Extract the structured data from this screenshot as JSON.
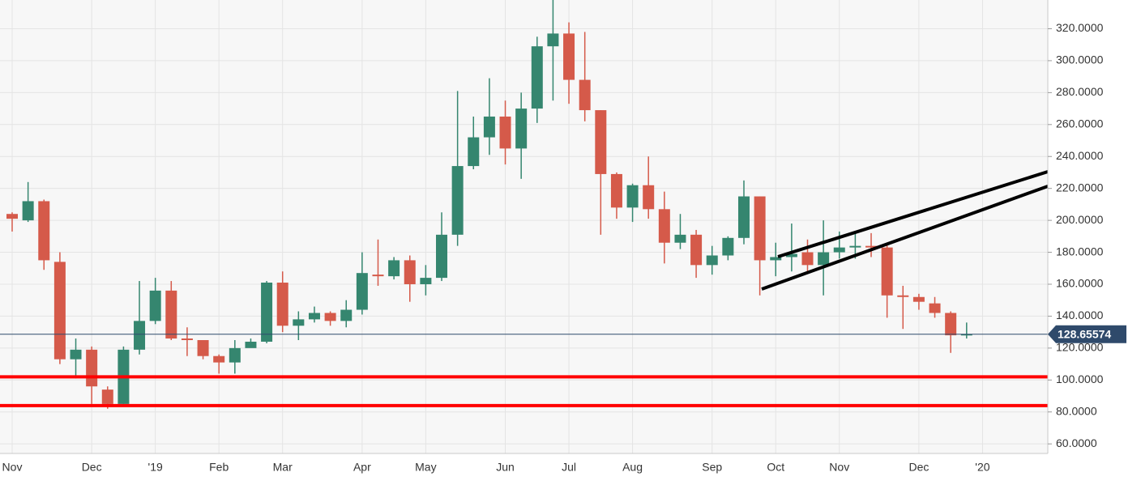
{
  "chart_data": {
    "type": "candlestick",
    "categories": [
      "Nov",
      null,
      null,
      null,
      null,
      "Dec",
      null,
      null,
      null,
      "'19",
      null,
      null,
      null,
      "Feb",
      null,
      null,
      null,
      "Mar",
      null,
      null,
      null,
      null,
      "Apr",
      null,
      null,
      null,
      "May",
      null,
      null,
      null,
      null,
      "Jun",
      null,
      null,
      null,
      "Jul",
      null,
      null,
      null,
      "Aug",
      null,
      null,
      null,
      null,
      "Sep",
      null,
      null,
      null,
      "Oct",
      null,
      null,
      null,
      "Nov",
      null,
      null,
      null,
      null,
      "Dec",
      null,
      null,
      null,
      "'20"
    ],
    "open": [
      204,
      200,
      212,
      174,
      113,
      119,
      94,
      85,
      119,
      137,
      156,
      126,
      125,
      115,
      111,
      120,
      124,
      161,
      134,
      138,
      142,
      137,
      144,
      166,
      165,
      175,
      160,
      164,
      191,
      234,
      252,
      265,
      245,
      270,
      309,
      317,
      288,
      269,
      229,
      208,
      222,
      207,
      186,
      191,
      172,
      178,
      189,
      215,
      175,
      177,
      180,
      172,
      180,
      183,
      184,
      183,
      153,
      152,
      148,
      142,
      128,
      null
    ],
    "high": [
      205,
      224,
      213,
      180,
      126,
      121,
      96,
      121,
      162,
      164,
      162,
      133,
      125,
      116,
      125,
      126,
      162,
      168,
      143,
      146,
      143,
      150,
      180,
      188,
      177,
      178,
      172,
      205,
      281,
      265,
      289,
      275,
      280,
      315,
      338,
      324,
      318,
      269,
      230,
      223,
      240,
      218,
      204,
      194,
      184,
      190,
      225,
      215,
      186,
      198,
      188,
      200,
      193,
      193,
      192,
      186,
      159,
      154,
      152,
      143,
      136,
      null
    ],
    "low": [
      193,
      199,
      169,
      110,
      101,
      85,
      82,
      85,
      116,
      135,
      125,
      115,
      113,
      104,
      104,
      121,
      123,
      130,
      125,
      136,
      134,
      133,
      141,
      159,
      163,
      149,
      153,
      162,
      184,
      232,
      241,
      235,
      226,
      261,
      275,
      273,
      262,
      191,
      201,
      199,
      201,
      173,
      182,
      164,
      166,
      175,
      185,
      153,
      165,
      168,
      167,
      153,
      176,
      176,
      177,
      139,
      132,
      144,
      139,
      117,
      126,
      null
    ],
    "close": [
      201,
      212,
      175,
      113,
      119,
      96,
      85,
      119,
      137,
      156,
      126,
      125,
      115,
      111,
      120,
      124,
      161,
      134,
      138,
      142,
      137,
      144,
      167,
      165,
      175,
      160,
      164,
      191,
      234,
      252,
      265,
      245,
      270,
      309,
      317,
      288,
      269,
      229,
      208,
      222,
      207,
      186,
      191,
      172,
      178,
      189,
      215,
      175,
      177,
      179,
      172,
      180,
      183,
      184,
      183,
      153,
      152,
      149,
      142,
      128,
      128.66,
      null
    ],
    "up_color": "#35866f",
    "down_color": "#d55a4a",
    "ylim": [
      54,
      338
    ],
    "yticks": [
      {
        "value": 60,
        "label": "60.0000"
      },
      {
        "value": 80,
        "label": "80.0000"
      },
      {
        "value": 100,
        "label": "100.0000"
      },
      {
        "value": 120,
        "label": "120.0000"
      },
      {
        "value": 140,
        "label": "140.0000"
      },
      {
        "value": 160,
        "label": "160.0000"
      },
      {
        "value": 180,
        "label": "180.0000"
      },
      {
        "value": 200,
        "label": "200.0000"
      },
      {
        "value": 220,
        "label": "220.0000"
      },
      {
        "value": 240,
        "label": "240.0000"
      },
      {
        "value": 260,
        "label": "260.0000"
      },
      {
        "value": 280,
        "label": "280.0000"
      },
      {
        "value": 300,
        "label": "300.0000"
      },
      {
        "value": 320,
        "label": "320.0000"
      }
    ],
    "last_price": 128.65574,
    "last_price_color": "#2f4a6b",
    "hlines": [
      102,
      84
    ],
    "hline_color": "#ff0000",
    "grid": true
  }
}
